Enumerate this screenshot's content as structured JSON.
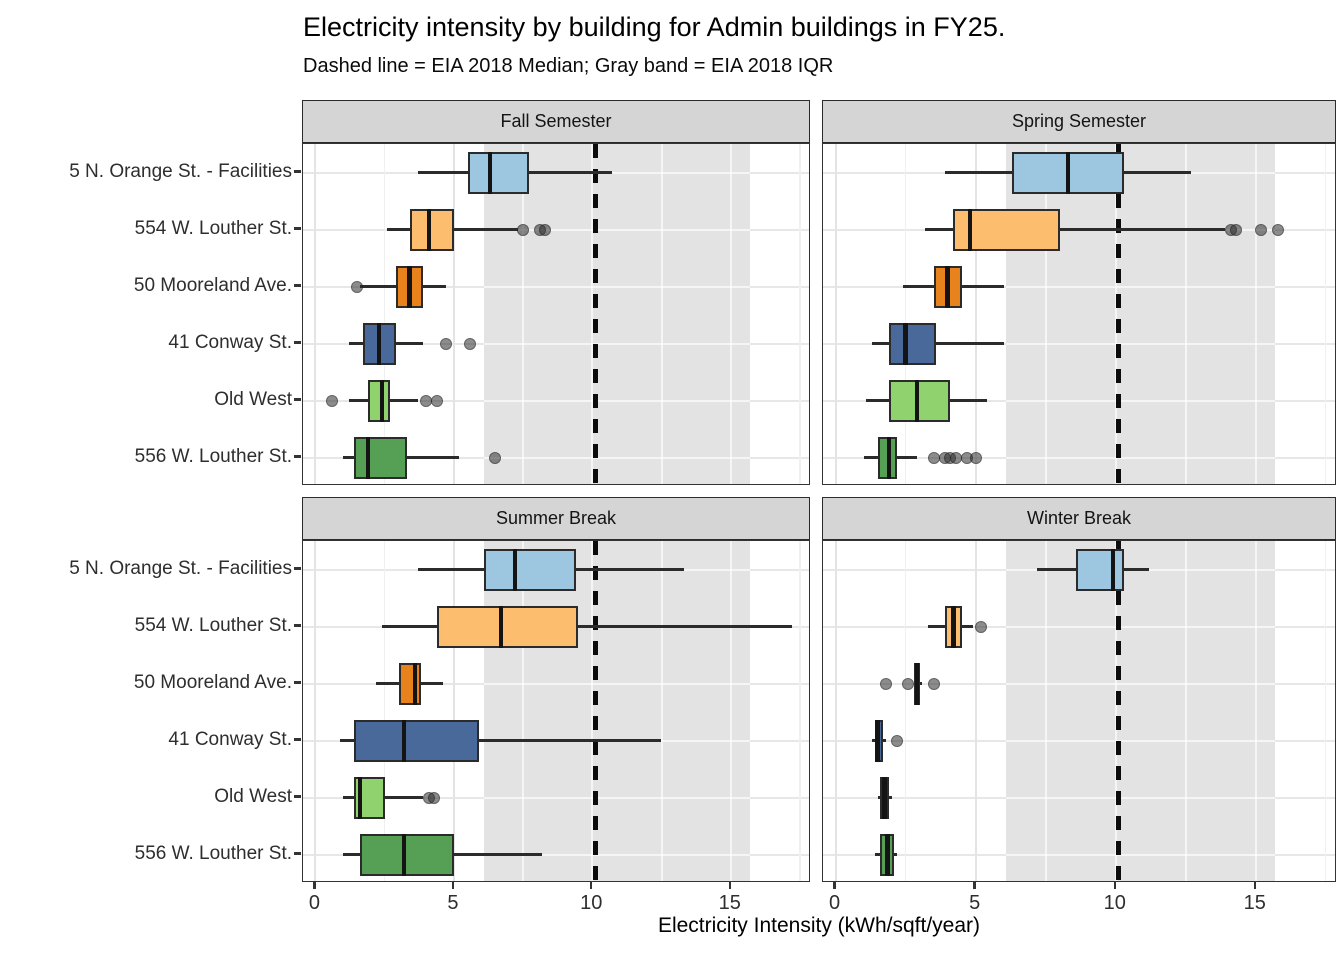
{
  "title": "Electricity intensity by building for Admin buildings in FY25.",
  "subtitle": "Dashed line = EIA 2018 Median; Gray band = EIA 2018 IQR",
  "chart_data": {
    "type": "boxplot",
    "orientation": "horizontal",
    "grid": "on",
    "legend": "none",
    "x": {
      "label": "Electricity Intensity (kWh/sqft/year)",
      "ticks": [
        0,
        5,
        10,
        15
      ],
      "minor_gridlines": [
        2.5,
        7.5,
        12.5,
        17.5
      ],
      "range": [
        -0.45,
        17.9
      ]
    },
    "categories": [
      "5 N. Orange St. - Facilities",
      "554 W. Louther St.",
      "50 Mooreland Ave.",
      "41 Conway St.",
      "Old West",
      "556 W. Louther St."
    ],
    "category_colors": [
      "#9dc6e1",
      "#fcbd6f",
      "#e8821d",
      "#4a699b",
      "#90d26d",
      "#55a055"
    ],
    "box_border_color": "#2b2b2b",
    "reference_band": {
      "label": "EIA 2018 IQR",
      "from": 6.1,
      "to": 15.7,
      "color": "#e3e3e3"
    },
    "reference_line": {
      "label": "EIA 2018 Median",
      "value": 10.1,
      "style": "dashed",
      "color": "#0c0c0c"
    },
    "facets": [
      {
        "label": "Fall Semester",
        "boxes": [
          {
            "building": "5 N. Orange St. - Facilities",
            "whisker_low": 3.7,
            "q1": 5.5,
            "median": 6.3,
            "q3": 7.7,
            "whisker_high": 10.7,
            "outliers": []
          },
          {
            "building": "554 W. Louther St.",
            "whisker_low": 2.6,
            "q1": 3.4,
            "median": 4.1,
            "q3": 5.0,
            "whisker_high": 7.3,
            "outliers": [
              7.5,
              8.1,
              8.3
            ]
          },
          {
            "building": "50 Mooreland Ave.",
            "whisker_low": 1.6,
            "q1": 2.9,
            "median": 3.4,
            "q3": 3.9,
            "whisker_high": 4.7,
            "outliers": [
              1.5
            ]
          },
          {
            "building": "41 Conway St.",
            "whisker_low": 1.2,
            "q1": 1.7,
            "median": 2.3,
            "q3": 2.9,
            "whisker_high": 3.9,
            "outliers": [
              4.7,
              5.6
            ]
          },
          {
            "building": "Old West",
            "whisker_low": 1.2,
            "q1": 1.9,
            "median": 2.4,
            "q3": 2.7,
            "whisker_high": 3.7,
            "outliers": [
              0.6,
              4.0,
              4.4
            ]
          },
          {
            "building": "556 W. Louther St.",
            "whisker_low": 1.0,
            "q1": 1.4,
            "median": 1.9,
            "q3": 3.3,
            "whisker_high": 5.2,
            "outliers": [
              6.5
            ]
          }
        ]
      },
      {
        "label": "Spring Semester",
        "boxes": [
          {
            "building": "5 N. Orange St. - Facilities",
            "whisker_low": 3.9,
            "q1": 6.3,
            "median": 8.3,
            "q3": 10.3,
            "whisker_high": 12.7,
            "outliers": []
          },
          {
            "building": "554 W. Louther St.",
            "whisker_low": 3.2,
            "q1": 4.2,
            "median": 4.8,
            "q3": 8.0,
            "whisker_high": 13.9,
            "outliers": [
              14.1,
              14.3,
              15.2,
              15.8
            ]
          },
          {
            "building": "50 Mooreland Ave.",
            "whisker_low": 2.4,
            "q1": 3.5,
            "median": 4.0,
            "q3": 4.5,
            "whisker_high": 6.0,
            "outliers": []
          },
          {
            "building": "41 Conway St.",
            "whisker_low": 1.3,
            "q1": 1.9,
            "median": 2.5,
            "q3": 3.6,
            "whisker_high": 6.0,
            "outliers": []
          },
          {
            "building": "Old West",
            "whisker_low": 1.1,
            "q1": 1.9,
            "median": 2.9,
            "q3": 4.1,
            "whisker_high": 5.4,
            "outliers": []
          },
          {
            "building": "556 W. Louther St.",
            "whisker_low": 1.0,
            "q1": 1.5,
            "median": 1.9,
            "q3": 2.2,
            "whisker_high": 2.9,
            "outliers": [
              3.5,
              3.9,
              4.1,
              4.3,
              4.7,
              5.0
            ]
          }
        ]
      },
      {
        "label": "Summer Break",
        "boxes": [
          {
            "building": "5 N. Orange St. - Facilities",
            "whisker_low": 3.7,
            "q1": 6.1,
            "median": 7.2,
            "q3": 9.4,
            "whisker_high": 13.3,
            "outliers": []
          },
          {
            "building": "554 W. Louther St.",
            "whisker_low": 2.4,
            "q1": 4.4,
            "median": 6.7,
            "q3": 9.5,
            "whisker_high": 17.2,
            "outliers": []
          },
          {
            "building": "50 Mooreland Ave.",
            "whisker_low": 2.2,
            "q1": 3.0,
            "median": 3.6,
            "q3": 3.8,
            "whisker_high": 4.6,
            "outliers": []
          },
          {
            "building": "41 Conway St.",
            "whisker_low": 0.9,
            "q1": 1.4,
            "median": 3.2,
            "q3": 5.9,
            "whisker_high": 12.5,
            "outliers": []
          },
          {
            "building": "Old West",
            "whisker_low": 1.0,
            "q1": 1.4,
            "median": 1.6,
            "q3": 2.5,
            "whisker_high": 3.9,
            "outliers": [
              4.1,
              4.3
            ]
          },
          {
            "building": "556 W. Louther St.",
            "whisker_low": 1.0,
            "q1": 1.6,
            "median": 3.2,
            "q3": 5.0,
            "whisker_high": 8.2,
            "outliers": []
          }
        ]
      },
      {
        "label": "Winter Break",
        "boxes": [
          {
            "building": "5 N. Orange St. - Facilities",
            "whisker_low": 7.2,
            "q1": 8.6,
            "median": 9.9,
            "q3": 10.3,
            "whisker_high": 11.2,
            "outliers": []
          },
          {
            "building": "554 W. Louther St.",
            "whisker_low": 3.3,
            "q1": 3.9,
            "median": 4.2,
            "q3": 4.5,
            "whisker_high": 4.9,
            "outliers": [
              5.2
            ]
          },
          {
            "building": "50 Mooreland Ave.",
            "whisker_low": 2.8,
            "q1": 2.8,
            "median": 2.9,
            "q3": 3.0,
            "whisker_high": 3.1,
            "outliers": [
              1.8,
              2.6,
              3.5
            ]
          },
          {
            "building": "41 Conway St.",
            "whisker_low": 1.3,
            "q1": 1.4,
            "median": 1.5,
            "q3": 1.7,
            "whisker_high": 1.8,
            "outliers": [
              2.2
            ]
          },
          {
            "building": "Old West",
            "whisker_low": 1.5,
            "q1": 1.6,
            "median": 1.75,
            "q3": 1.9,
            "whisker_high": 2.0,
            "outliers": []
          },
          {
            "building": "556 W. Louther St.",
            "whisker_low": 1.4,
            "q1": 1.6,
            "median": 1.85,
            "q3": 2.1,
            "whisker_high": 2.2,
            "outliers": []
          }
        ]
      }
    ]
  }
}
